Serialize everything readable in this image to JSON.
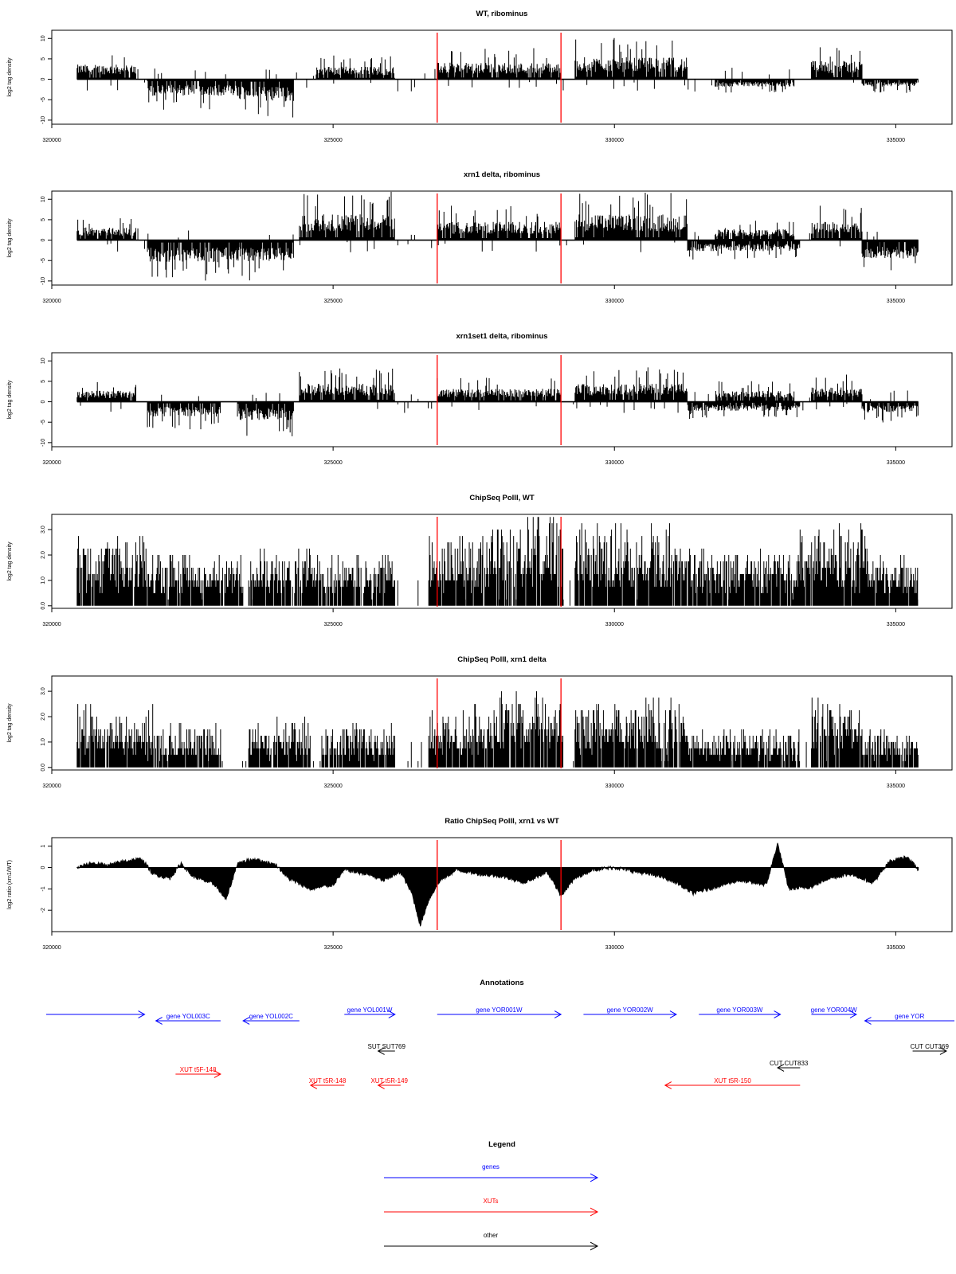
{
  "colors": {
    "gene": "#0000ff",
    "xut": "#ff0000",
    "other": "#000000",
    "marker": "#ff0000",
    "bars": "#000000",
    "frame": "#000000"
  },
  "chart_data": [
    {
      "type": "bar",
      "title": "WT, ribominus",
      "ylabel": "log2 tag density",
      "xlim": [
        320000,
        336000
      ],
      "ylim": [
        -11,
        12
      ],
      "yticks": [
        10,
        5,
        0,
        -5,
        -10
      ],
      "xticks": [
        320000,
        325000,
        330000,
        335000
      ],
      "x_data_range": [
        320450,
        335400
      ],
      "markers": [
        326850,
        329050
      ],
      "segments": [
        {
          "x": [
            320450,
            321500
          ],
          "sign": 1,
          "amp": 4
        },
        {
          "x": [
            321700,
            323300
          ],
          "sign": -1,
          "amp": 4.5
        },
        {
          "x": [
            323300,
            324300
          ],
          "sign": -1,
          "amp": 6
        },
        {
          "x": [
            324700,
            326100
          ],
          "sign": 1,
          "amp": 3.5
        },
        {
          "x": [
            326850,
            329050
          ],
          "sign": 1,
          "amp": 4.5
        },
        {
          "x": [
            329300,
            331300
          ],
          "sign": 1,
          "amp": 6
        },
        {
          "x": [
            331800,
            333200
          ],
          "sign": -1,
          "amp": 2
        },
        {
          "x": [
            333500,
            334400
          ],
          "sign": 1,
          "amp": 5
        },
        {
          "x": [
            334400,
            335400
          ],
          "sign": -1,
          "amp": 2
        }
      ]
    },
    {
      "type": "bar",
      "title": "xrn1 delta, ribominus",
      "ylabel": "log2 tag density",
      "xlim": [
        320000,
        336000
      ],
      "ylim": [
        -11,
        12
      ],
      "yticks": [
        10,
        5,
        0,
        -5,
        -10
      ],
      "xticks": [
        320000,
        325000,
        330000,
        335000
      ],
      "x_data_range": [
        320450,
        335400
      ],
      "markers": [
        326850,
        329050
      ],
      "segments": [
        {
          "x": [
            320450,
            321500
          ],
          "sign": 1,
          "amp": 3.5
        },
        {
          "x": [
            321700,
            323300
          ],
          "sign": -1,
          "amp": 6
        },
        {
          "x": [
            323300,
            324300
          ],
          "sign": -1,
          "amp": 6
        },
        {
          "x": [
            324400,
            326100
          ],
          "sign": 1,
          "amp": 7
        },
        {
          "x": [
            326850,
            329050
          ],
          "sign": 1,
          "amp": 5
        },
        {
          "x": [
            329300,
            331300
          ],
          "sign": 1,
          "amp": 7
        },
        {
          "x": [
            331300,
            333300
          ],
          "sign": -1,
          "amp": 3
        },
        {
          "x": [
            331800,
            333200
          ],
          "sign": 1,
          "amp": 3
        },
        {
          "x": [
            333500,
            334400
          ],
          "sign": 1,
          "amp": 5
        },
        {
          "x": [
            334400,
            335400
          ],
          "sign": -1,
          "amp": 5
        }
      ]
    },
    {
      "type": "bar",
      "title": "xrn1set1 delta, ribominus",
      "ylabel": "log2 tag density",
      "xlim": [
        320000,
        336000
      ],
      "ylim": [
        -11,
        12
      ],
      "yticks": [
        10,
        5,
        0,
        -5,
        -10
      ],
      "xticks": [
        320000,
        325000,
        330000,
        335000
      ],
      "x_data_range": [
        320450,
        335400
      ],
      "markers": [
        326850,
        329050
      ],
      "segments": [
        {
          "x": [
            320450,
            321500
          ],
          "sign": 1,
          "amp": 3
        },
        {
          "x": [
            321700,
            323000
          ],
          "sign": -1,
          "amp": 4
        },
        {
          "x": [
            323300,
            324300
          ],
          "sign": -1,
          "amp": 5
        },
        {
          "x": [
            324400,
            326100
          ],
          "sign": 1,
          "amp": 5
        },
        {
          "x": [
            326850,
            329050
          ],
          "sign": 1,
          "amp": 3.5
        },
        {
          "x": [
            329300,
            331300
          ],
          "sign": 1,
          "amp": 5
        },
        {
          "x": [
            331300,
            333300
          ],
          "sign": -1,
          "amp": 2.5
        },
        {
          "x": [
            331800,
            333200
          ],
          "sign": 1,
          "amp": 3
        },
        {
          "x": [
            333500,
            334400
          ],
          "sign": 1,
          "amp": 4
        },
        {
          "x": [
            334400,
            335400
          ],
          "sign": -1,
          "amp": 3
        }
      ]
    },
    {
      "type": "bar",
      "title": "ChipSeq PolII, WT",
      "ylabel": "log2 tag density",
      "xlim": [
        320000,
        336000
      ],
      "ylim": [
        -0.1,
        3.6
      ],
      "yticks": [
        0.0,
        1.0,
        2.0,
        3.0
      ],
      "ytick_labels": [
        "0.0",
        "1.0",
        "2.0",
        "3.0"
      ],
      "xticks": [
        320000,
        325000,
        330000,
        335000
      ],
      "x_data_range": [
        320450,
        335400
      ],
      "markers": [
        326850,
        329050
      ],
      "segments": [
        {
          "x": [
            320450,
            321800
          ],
          "sign": 1,
          "amp": 2.2
        },
        {
          "x": [
            321800,
            323400
          ],
          "sign": 1,
          "amp": 1.6
        },
        {
          "x": [
            323500,
            324800
          ],
          "sign": 1,
          "amp": 1.8
        },
        {
          "x": [
            324800,
            326100
          ],
          "sign": 1,
          "amp": 1.6
        },
        {
          "x": [
            326700,
            327800
          ],
          "sign": 1,
          "amp": 2.2
        },
        {
          "x": [
            327800,
            329100
          ],
          "sign": 1,
          "amp": 3.0
        },
        {
          "x": [
            329300,
            331300
          ],
          "sign": 1,
          "amp": 2.6
        },
        {
          "x": [
            331300,
            333300
          ],
          "sign": 1,
          "amp": 1.8
        },
        {
          "x": [
            333300,
            334500
          ],
          "sign": 1,
          "amp": 2.6
        },
        {
          "x": [
            334500,
            335400
          ],
          "sign": 1,
          "amp": 1.6
        }
      ]
    },
    {
      "type": "bar",
      "title": "ChipSeq PolII, xrn1 delta",
      "ylabel": "log2 tag density",
      "xlim": [
        320000,
        336000
      ],
      "ylim": [
        -0.1,
        3.6
      ],
      "yticks": [
        0.0,
        1.0,
        2.0,
        3.0
      ],
      "ytick_labels": [
        "0.0",
        "1.0",
        "2.0",
        "3.0"
      ],
      "xticks": [
        320000,
        325000,
        330000,
        335000
      ],
      "x_data_range": [
        320450,
        335400
      ],
      "markers": [
        326850,
        329050
      ],
      "segments": [
        {
          "x": [
            320450,
            321800
          ],
          "sign": 1,
          "amp": 2.0
        },
        {
          "x": [
            321800,
            323000
          ],
          "sign": 1,
          "amp": 1.4
        },
        {
          "x": [
            323500,
            324600
          ],
          "sign": 1,
          "amp": 1.6
        },
        {
          "x": [
            324800,
            326100
          ],
          "sign": 1,
          "amp": 1.4
        },
        {
          "x": [
            326700,
            327800
          ],
          "sign": 1,
          "amp": 2.0
        },
        {
          "x": [
            327800,
            329100
          ],
          "sign": 1,
          "amp": 2.5
        },
        {
          "x": [
            329300,
            331300
          ],
          "sign": 1,
          "amp": 2.2
        },
        {
          "x": [
            331300,
            333300
          ],
          "sign": 1,
          "amp": 1.2
        },
        {
          "x": [
            333500,
            334400
          ],
          "sign": 1,
          "amp": 2.2
        },
        {
          "x": [
            334400,
            335400
          ],
          "sign": 1,
          "amp": 1.2
        }
      ]
    },
    {
      "type": "area",
      "title": "Ratio ChipSeq PolII, xrn1 vs WT",
      "ylabel": "log2 ratio (xrn1/WT)",
      "xlim": [
        320000,
        336000
      ],
      "ylim": [
        -3.0,
        1.4
      ],
      "yticks": [
        1,
        0,
        -1,
        -2
      ],
      "xticks": [
        320000,
        325000,
        330000,
        335000
      ],
      "x_data_range": [
        320450,
        335400
      ],
      "markers": [
        326850,
        329050
      ],
      "ratio_points": [
        [
          320450,
          0.0
        ],
        [
          320700,
          0.2
        ],
        [
          321000,
          0.1
        ],
        [
          321300,
          0.3
        ],
        [
          321600,
          0.4
        ],
        [
          321800,
          -0.3
        ],
        [
          322100,
          -0.5
        ],
        [
          322300,
          0.2
        ],
        [
          322500,
          -0.4
        ],
        [
          322900,
          -0.8
        ],
        [
          323100,
          -1.5
        ],
        [
          323300,
          0.2
        ],
        [
          323600,
          0.4
        ],
        [
          324000,
          0.1
        ],
        [
          324200,
          -0.5
        ],
        [
          324600,
          -1.0
        ],
        [
          325000,
          -0.8
        ],
        [
          325200,
          -0.1
        ],
        [
          325600,
          -0.3
        ],
        [
          325900,
          -0.6
        ],
        [
          326200,
          -0.2
        ],
        [
          326400,
          -1.2
        ],
        [
          326550,
          -2.7
        ],
        [
          326700,
          -1.5
        ],
        [
          326900,
          -0.6
        ],
        [
          327200,
          -0.1
        ],
        [
          327600,
          -0.3
        ],
        [
          328000,
          -0.4
        ],
        [
          328400,
          -0.7
        ],
        [
          328800,
          -0.2
        ],
        [
          329050,
          -1.3
        ],
        [
          329300,
          -0.5
        ],
        [
          329600,
          -0.1
        ],
        [
          330000,
          0.0
        ],
        [
          330400,
          -0.2
        ],
        [
          330800,
          -0.4
        ],
        [
          331100,
          -0.7
        ],
        [
          331400,
          -1.2
        ],
        [
          331800,
          -0.9
        ],
        [
          332200,
          -0.6
        ],
        [
          332700,
          -0.8
        ],
        [
          332900,
          1.1
        ],
        [
          333100,
          -1.0
        ],
        [
          333500,
          -0.9
        ],
        [
          333800,
          -0.5
        ],
        [
          334200,
          -0.3
        ],
        [
          334600,
          -0.7
        ],
        [
          334900,
          0.3
        ],
        [
          335200,
          0.5
        ],
        [
          335400,
          -0.1
        ]
      ]
    }
  ],
  "annotations": {
    "title": "Annotations",
    "items": [
      {
        "label": "",
        "type": "gene",
        "x1": 319900,
        "x2": 321650,
        "dir": "right",
        "row": 0
      },
      {
        "label": "gene YOL003C",
        "type": "gene",
        "x1": 321850,
        "x2": 323000,
        "dir": "left",
        "row": 1
      },
      {
        "label": "gene YOL002C",
        "type": "gene",
        "x1": 323400,
        "x2": 324400,
        "dir": "left",
        "row": 1
      },
      {
        "label": "gene YOL001W",
        "type": "gene",
        "x1": 325200,
        "x2": 326100,
        "dir": "right",
        "row": 0
      },
      {
        "label": "gene YOR001W",
        "type": "gene",
        "x1": 326850,
        "x2": 329050,
        "dir": "right",
        "row": 0
      },
      {
        "label": "gene YOR002W",
        "type": "gene",
        "x1": 329450,
        "x2": 331100,
        "dir": "right",
        "row": 0
      },
      {
        "label": "gene YOR003W",
        "type": "gene",
        "x1": 331500,
        "x2": 332950,
        "dir": "right",
        "row": 0
      },
      {
        "label": "gene YOR004W",
        "type": "gene",
        "x1": 333500,
        "x2": 334300,
        "dir": "right",
        "row": 0
      },
      {
        "label": "gene YOR",
        "type": "gene",
        "x1": 334450,
        "x2": 336200,
        "dir": "left",
        "row": 1
      },
      {
        "label": "SUT SUT769",
        "type": "other",
        "x1": 325800,
        "x2": 326100,
        "dir": "left",
        "row": 2
      },
      {
        "label": "CUT CUT833",
        "type": "other",
        "x1": 332900,
        "x2": 333300,
        "dir": "left",
        "row": 3
      },
      {
        "label": "CUT CUT369",
        "type": "other",
        "x1": 335300,
        "x2": 335900,
        "dir": "right",
        "row": 2
      },
      {
        "label": "XUT t5F-148",
        "type": "xut",
        "x1": 322200,
        "x2": 323000,
        "dir": "right",
        "row": 4
      },
      {
        "label": "XUT t5R-148",
        "type": "xut",
        "x1": 324600,
        "x2": 325200,
        "dir": "left",
        "row": 5
      },
      {
        "label": "XUT t5R-149",
        "type": "xut",
        "x1": 325800,
        "x2": 326200,
        "dir": "left",
        "row": 5
      },
      {
        "label": "XUT t5R-150",
        "type": "xut",
        "x1": 330900,
        "x2": 333300,
        "dir": "left",
        "row": 5
      }
    ]
  },
  "legend": {
    "title": "Legend",
    "items": [
      {
        "label": "genes",
        "type": "gene"
      },
      {
        "label": "XUTs",
        "type": "xut"
      },
      {
        "label": "other",
        "type": "other"
      }
    ]
  }
}
